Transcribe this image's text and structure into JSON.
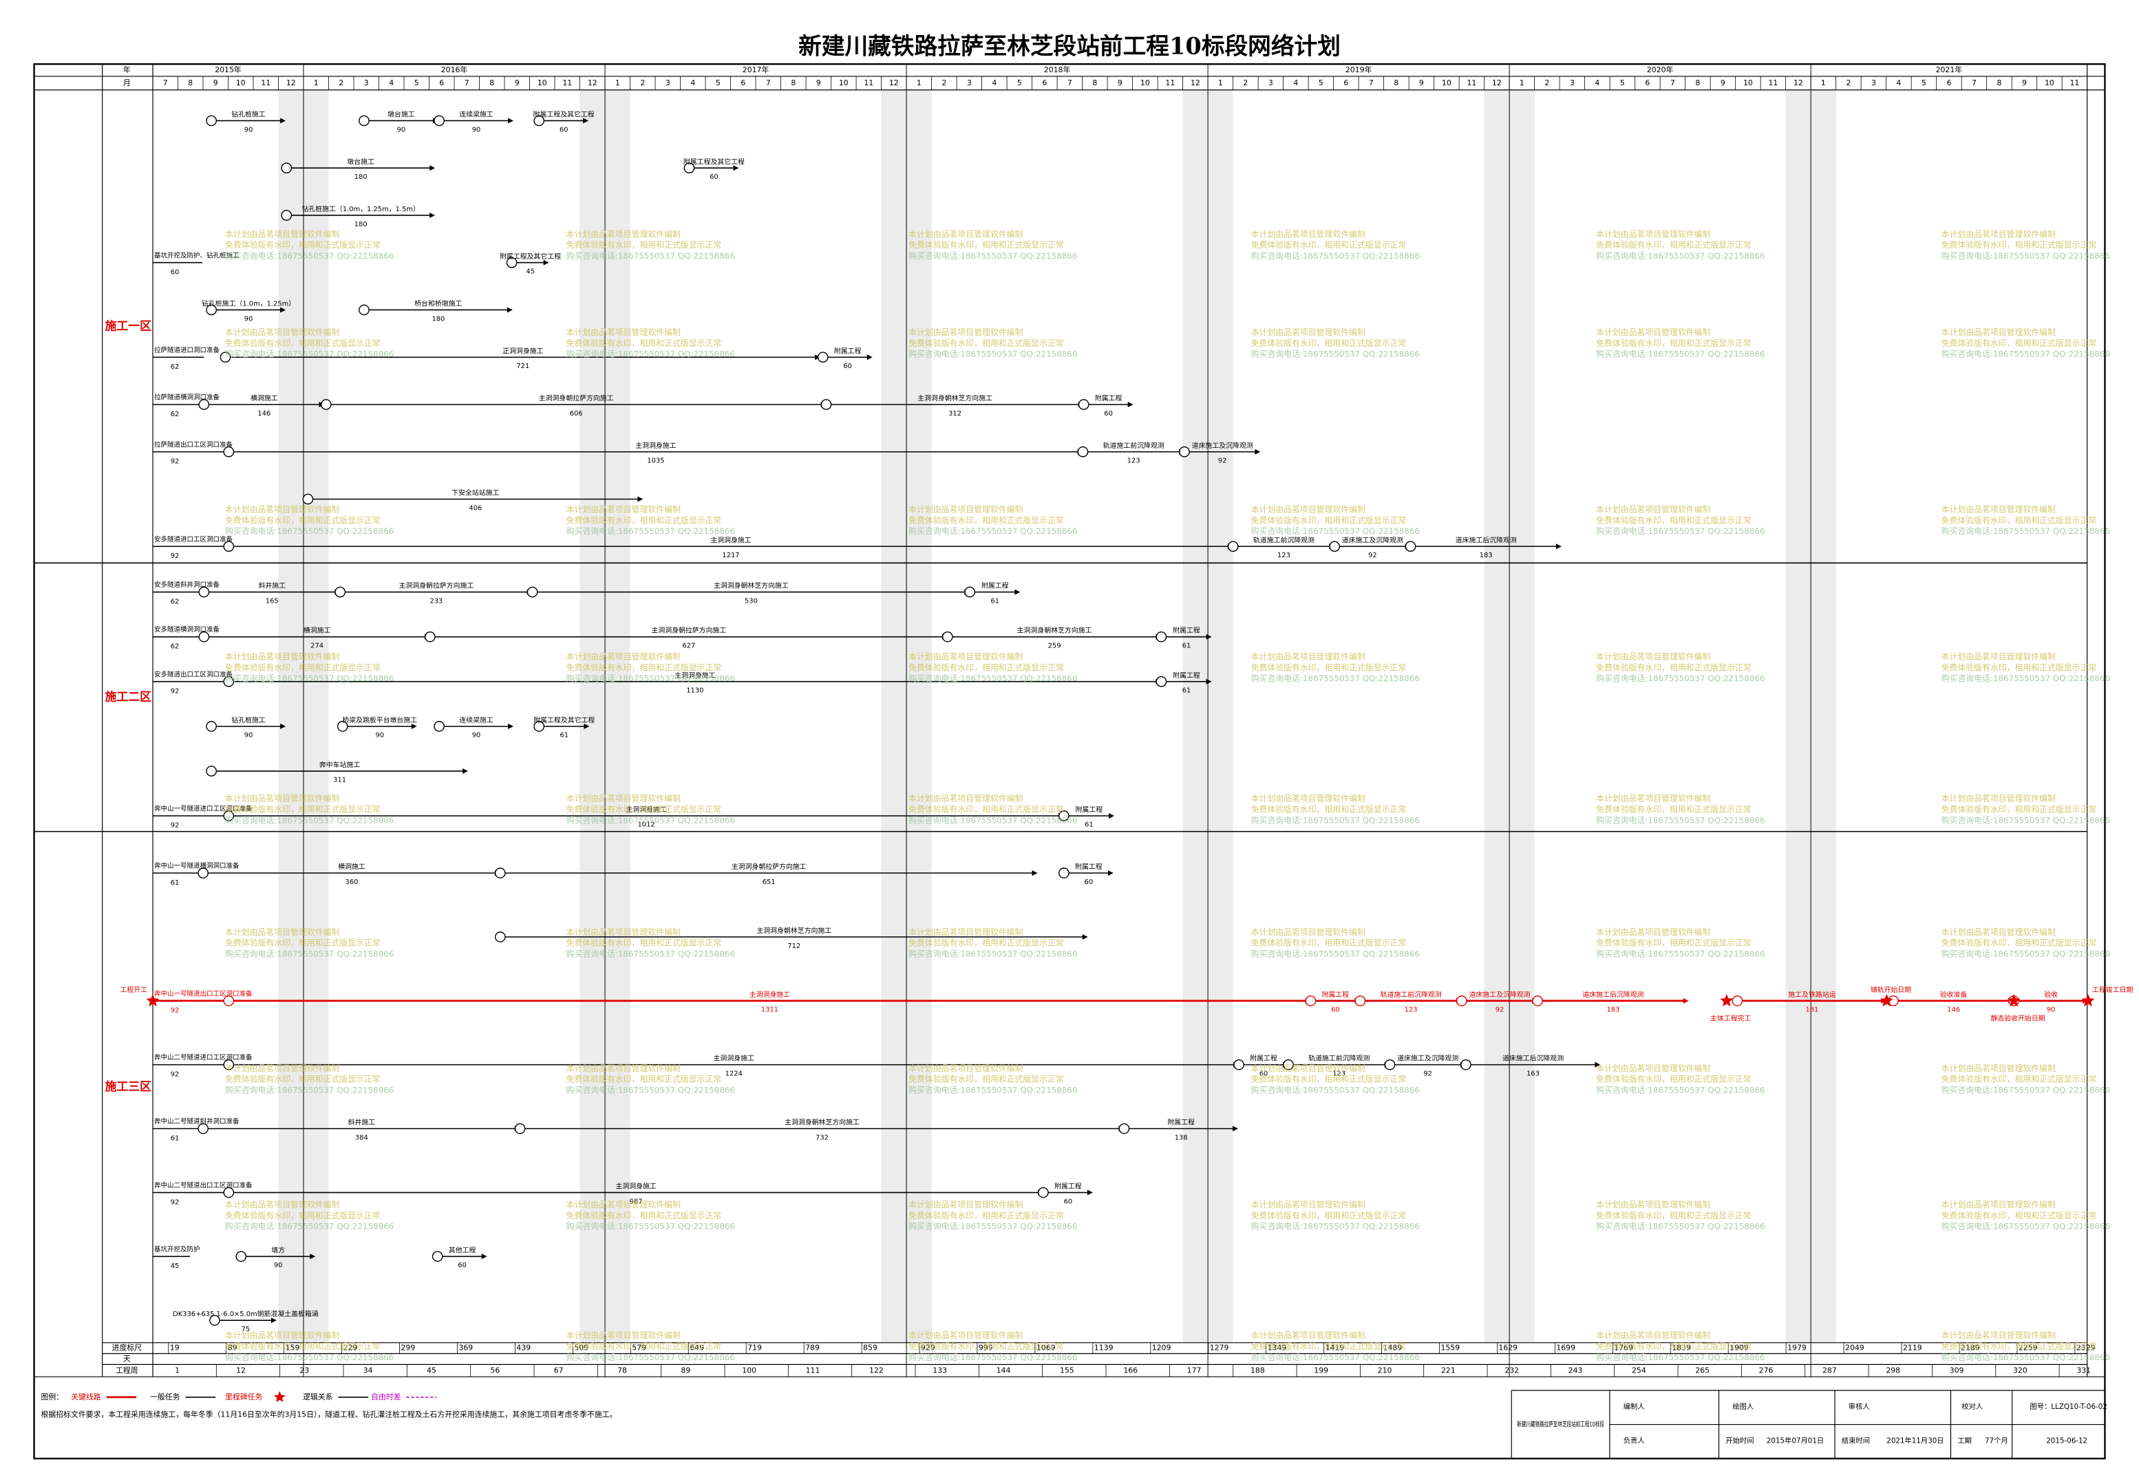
{
  "header": {
    "title": "新建川藏铁路拉萨至林芝段站前工程10标段网络计划"
  },
  "timeline": {
    "year_label": "年",
    "month_label": "月",
    "years": [
      {
        "label": "2015年",
        "months": [
          "7",
          "8",
          "9",
          "10",
          "11",
          "12"
        ]
      },
      {
        "label": "2016年",
        "months": [
          "1",
          "2",
          "3",
          "4",
          "5",
          "6",
          "7",
          "8",
          "9",
          "10",
          "11",
          "12"
        ]
      },
      {
        "label": "2017年",
        "months": [
          "1",
          "2",
          "3",
          "4",
          "5",
          "6",
          "7",
          "8",
          "9",
          "10",
          "11",
          "12"
        ]
      },
      {
        "label": "2018年",
        "months": [
          "1",
          "2",
          "3",
          "4",
          "5",
          "6",
          "7",
          "8",
          "9",
          "10",
          "11",
          "12"
        ]
      },
      {
        "label": "2019年",
        "months": [
          "1",
          "2",
          "3",
          "4",
          "5",
          "6",
          "7",
          "8",
          "9",
          "10",
          "11",
          "12"
        ]
      },
      {
        "label": "2020年",
        "months": [
          "1",
          "2",
          "3",
          "4",
          "5",
          "6",
          "7",
          "8",
          "9",
          "10",
          "11",
          "12"
        ]
      },
      {
        "label": "2021年",
        "months": [
          "1",
          "2",
          "3",
          "4",
          "5",
          "6",
          "7",
          "8",
          "9",
          "10",
          "11"
        ]
      }
    ]
  },
  "scale": {
    "label": "进度标尺",
    "values": [
      19,
      89,
      159,
      229,
      299,
      369,
      439,
      509,
      579,
      649,
      719,
      789,
      859,
      929,
      999,
      1069,
      1139,
      1209,
      1279,
      1349,
      1419,
      1489,
      1559,
      1629,
      1699,
      1769,
      1839,
      1909,
      1979,
      2049,
      2119,
      2189,
      2259,
      2329
    ]
  },
  "day_label": "天",
  "weeks": {
    "label": "工程周",
    "values": [
      1,
      12,
      23,
      34,
      45,
      56,
      67,
      78,
      89,
      100,
      111,
      122,
      133,
      144,
      155,
      166,
      177,
      188,
      199,
      210,
      221,
      232,
      243,
      254,
      265,
      276,
      287,
      298,
      309,
      320,
      331
    ]
  },
  "zones": [
    {
      "label": "施工一区",
      "lanes": [
        {
          "tasks": [
            {
              "name": "钻孔桩施工",
              "duration": 90,
              "start": 71
            },
            {
              "name": "墩台施工",
              "duration": 90,
              "start": 256
            },
            {
              "name": "连续梁施工",
              "duration": 90,
              "start": 347
            },
            {
              "name": "附属工程及其它工程",
              "duration": 60,
              "start": 468
            }
          ]
        },
        {
          "tasks": [
            {
              "name": "墩台施工",
              "duration": 180,
              "start": 162
            },
            {
              "name": "附属工程及其它工程",
              "duration": 60,
              "start": 650
            }
          ]
        },
        {
          "tasks": [
            {
              "name": "钻孔桩施工（1.0m，1.25m，1.5m）",
              "duration": 180,
              "start": 162
            }
          ]
        },
        {
          "label": "基坑开挖及防护、钻孔桩施工",
          "prep": 60,
          "tasks": [
            {
              "name": "附属工程及其它工程",
              "duration": 45,
              "start": 435
            }
          ]
        },
        {
          "tasks": [
            {
              "name": "钻孔桩施工（1.0m，1.25m）",
              "duration": 90,
              "start": 71
            },
            {
              "name": "桥台和桥墩施工",
              "duration": 180,
              "start": 256
            }
          ]
        },
        {
          "label": "拉萨隧道进口洞口准备",
          "prep": 62,
          "tasks": [
            {
              "name": "正洞洞身施工",
              "duration": 721,
              "start": 88
            },
            {
              "name": "附属工程",
              "duration": 60,
              "start": 812
            }
          ]
        },
        {
          "label": "拉萨隧道横洞洞口准备",
          "prep": 62,
          "tasks": [
            {
              "name": "横洞施工",
              "duration": 146,
              "start": 62
            },
            {
              "name": "主洞洞身朝拉萨方向施工",
              "duration": 606,
              "start": 210
            },
            {
              "name": "主洞洞身朝林芝方向施工",
              "duration": 312,
              "start": 816
            },
            {
              "name": "附属工程",
              "duration": 60,
              "start": 1128
            }
          ]
        },
        {
          "label": "拉萨隧道出口工区洞口准备",
          "prep": 92,
          "tasks": [
            {
              "name": "主洞洞身施工",
              "duration": 1035,
              "start": 92
            },
            {
              "name": "轨道施工前沉降观测",
              "duration": 123,
              "start": 1127
            },
            {
              "name": "道床施工及沉降观测",
              "duration": 92,
              "start": 1250
            }
          ]
        },
        {
          "tasks": [
            {
              "name": "下安全站站施工",
              "duration": 406,
              "start": 188
            }
          ]
        },
        {
          "label": "安多隧道进口工区洞口准备",
          "prep": 92,
          "tasks": [
            {
              "name": "主洞洞身施工",
              "duration": 1217,
              "start": 92
            },
            {
              "name": "轨道施工前沉降观测",
              "duration": 123,
              "start": 1309
            },
            {
              "name": "道床施工及沉降观测",
              "duration": 92,
              "start": 1432
            },
            {
              "name": "道床施工后沉降观测",
              "duration": 183,
              "start": 1524
            }
          ]
        }
      ]
    },
    {
      "label": "施工二区",
      "lanes": [
        {
          "label": "安多隧道斜井洞口准备",
          "prep": 62,
          "tasks": [
            {
              "name": "斜井施工",
              "duration": 165,
              "start": 62
            },
            {
              "name": "主洞洞身朝拉萨方向施工",
              "duration": 233,
              "start": 227
            },
            {
              "name": "主洞洞身朝林芝方向施工",
              "duration": 530,
              "start": 460
            },
            {
              "name": "附属工程",
              "duration": 61,
              "start": 990
            }
          ]
        },
        {
          "label": "安多隧道横洞洞口准备",
          "prep": 62,
          "tasks": [
            {
              "name": "横洞施工",
              "duration": 274,
              "start": 62
            },
            {
              "name": "主洞洞身朝拉萨方向施工",
              "duration": 627,
              "start": 336
            },
            {
              "name": "主洞洞身朝林芝方向施工",
              "duration": 259,
              "start": 963
            },
            {
              "name": "附属工程",
              "duration": 61,
              "start": 1222
            }
          ]
        },
        {
          "label": "安多隧道出口工区洞口准备",
          "prep": 92,
          "tasks": [
            {
              "name": "主洞洞身施工",
              "duration": 1130,
              "start": 92
            },
            {
              "name": "附属工程",
              "duration": 61,
              "start": 1222
            }
          ]
        },
        {
          "tasks": [
            {
              "name": "钻孔桩施工",
              "duration": 90,
              "start": 71
            },
            {
              "name": "桥梁及跳板平台墩台施工",
              "duration": 90,
              "start": 230
            },
            {
              "name": "连续梁施工",
              "duration": 90,
              "start": 347
            },
            {
              "name": "附属工程及其它工程",
              "duration": 61,
              "start": 468
            }
          ]
        },
        {
          "tasks": [
            {
              "name": "奔中车站施工",
              "duration": 311,
              "start": 71
            }
          ]
        },
        {
          "label": "奔中山一号隧道进口工区洞口准备",
          "prep": 92,
          "tasks": [
            {
              "name": "主洞洞身施工",
              "duration": 1012,
              "start": 92
            },
            {
              "name": "附属工程",
              "duration": 61,
              "start": 1104
            }
          ]
        }
      ]
    },
    {
      "label": "施工三区",
      "lanes": [
        {
          "label": "奔中山一号隧道横洞洞口准备",
          "prep": 61,
          "tasks": [
            {
              "name": "横洞施工",
              "duration": 360,
              "start": 61
            },
            {
              "name": "主洞洞身朝拉萨方向施工",
              "duration": 651,
              "start": 421
            },
            {
              "name": "附属工程",
              "duration": 60,
              "start": 1104
            }
          ]
        },
        {
          "tasks": [
            {
              "name": "主洞洞身朝林芝方向施工",
              "duration": 712,
              "start": 421
            }
          ]
        },
        {
          "label": "奔中山一号隧道出口工区洞口准备",
          "prep": 92,
          "color": "#e00000",
          "tasks": [
            {
              "name": "主洞洞身施工",
              "duration": 1311,
              "start": 92
            },
            {
              "name": "附属工程",
              "duration": 60,
              "start": 1403
            },
            {
              "name": "轨道施工前沉降观测",
              "duration": 123,
              "start": 1463
            },
            {
              "name": "道床施工及沉降观测",
              "duration": 92,
              "start": 1586
            },
            {
              "name": "道床施工后沉降观测",
              "duration": 183,
              "start": 1678
            },
            {
              "name": "施工及铁路站运",
              "duration": 181,
              "start": 1920
            },
            {
              "name": "验收准备",
              "duration": 146,
              "start": 2109
            },
            {
              "name": "验收",
              "duration": 90,
              "start": 2255
            }
          ],
          "milestones": [
            {
              "name": "工程开工",
              "day": 0
            },
            {
              "name": "主体工程完工",
              "day": 1907
            },
            {
              "name": "铺轨开始日期",
              "day": 2101
            },
            {
              "name": "静态验收开始日期",
              "day": 2255
            },
            {
              "name": "工程竣工日期",
              "day": 2345
            }
          ]
        },
        {
          "label": "奔中山二号隧道进口工区洞口准备",
          "prep": 92,
          "tasks": [
            {
              "name": "主洞洞身施工",
              "duration": 1224,
              "start": 92
            },
            {
              "name": "附属工程",
              "duration": 60,
              "start": 1316
            },
            {
              "name": "轨道施工前沉降观测",
              "duration": 123,
              "start": 1376
            },
            {
              "name": "道床施工及沉降观测",
              "duration": 92,
              "start": 1499
            },
            {
              "name": "道床施工后沉降观测",
              "duration": 163,
              "start": 1591
            }
          ]
        },
        {
          "label": "奔中山二号隧道斜井洞口准备",
          "prep": 61,
          "tasks": [
            {
              "name": "斜井施工",
              "duration": 384,
              "start": 61
            },
            {
              "name": "主洞洞身朝林芝方向施工",
              "duration": 732,
              "start": 445
            },
            {
              "name": "附属工程",
              "duration": 138,
              "start": 1177
            }
          ]
        },
        {
          "label": "奔中山二号隧道出口工区洞口准备",
          "prep": 92,
          "tasks": [
            {
              "name": "主洞洞身施工",
              "duration": 987,
              "start": 92
            },
            {
              "name": "附属工程",
              "duration": 60,
              "start": 1079
            }
          ]
        },
        {
          "label": "基坑开挖及防护",
          "prep": 45,
          "tasks": [
            {
              "name": "填方",
              "duration": 90,
              "start": 107
            },
            {
              "name": "其他工程",
              "duration": 60,
              "start": 345
            }
          ]
        },
        {
          "tasks": [
            {
              "name": "DK336+635 1-6.0×5.0m钢筋混凝土盖板箱涵",
              "duration": 75,
              "start": 75
            }
          ]
        }
      ]
    }
  ],
  "legend": {
    "title": "图例：",
    "items": [
      "关键线路",
      "一般任务",
      "里程碑任务",
      "逻辑关系",
      "自由时差"
    ]
  },
  "note": "根据招标文件要求，本工程采用连续施工，每年冬季（11月16日至次年的3月15日），隧道工程、钻孔灌注桩工程及土石方开挖采用连续施工，其余施工项目考虑冬季不施工。",
  "watermark": [
    "本计划由品茗项目管理软件编制",
    "免费体验版有水印，相用和正式版显示正常",
    "购买咨询电话:18675550537 QQ:22158866"
  ],
  "footer": {
    "project": "新建川藏铁路拉萨至林芝段站前工程10标段",
    "compiler": "编制人",
    "drafter": "绘图人",
    "reviewer": "审核人",
    "checker": "校对人",
    "drawing_no": "图号：LLZQ10-T-06-02",
    "responsible": "负责人",
    "start_label": "开始时间",
    "start": "2015年07月01日",
    "end_label": "结束时间",
    "end": "2021年11月30日",
    "duration_label": "工期",
    "duration": "77个月",
    "date": "2015-06-12"
  }
}
